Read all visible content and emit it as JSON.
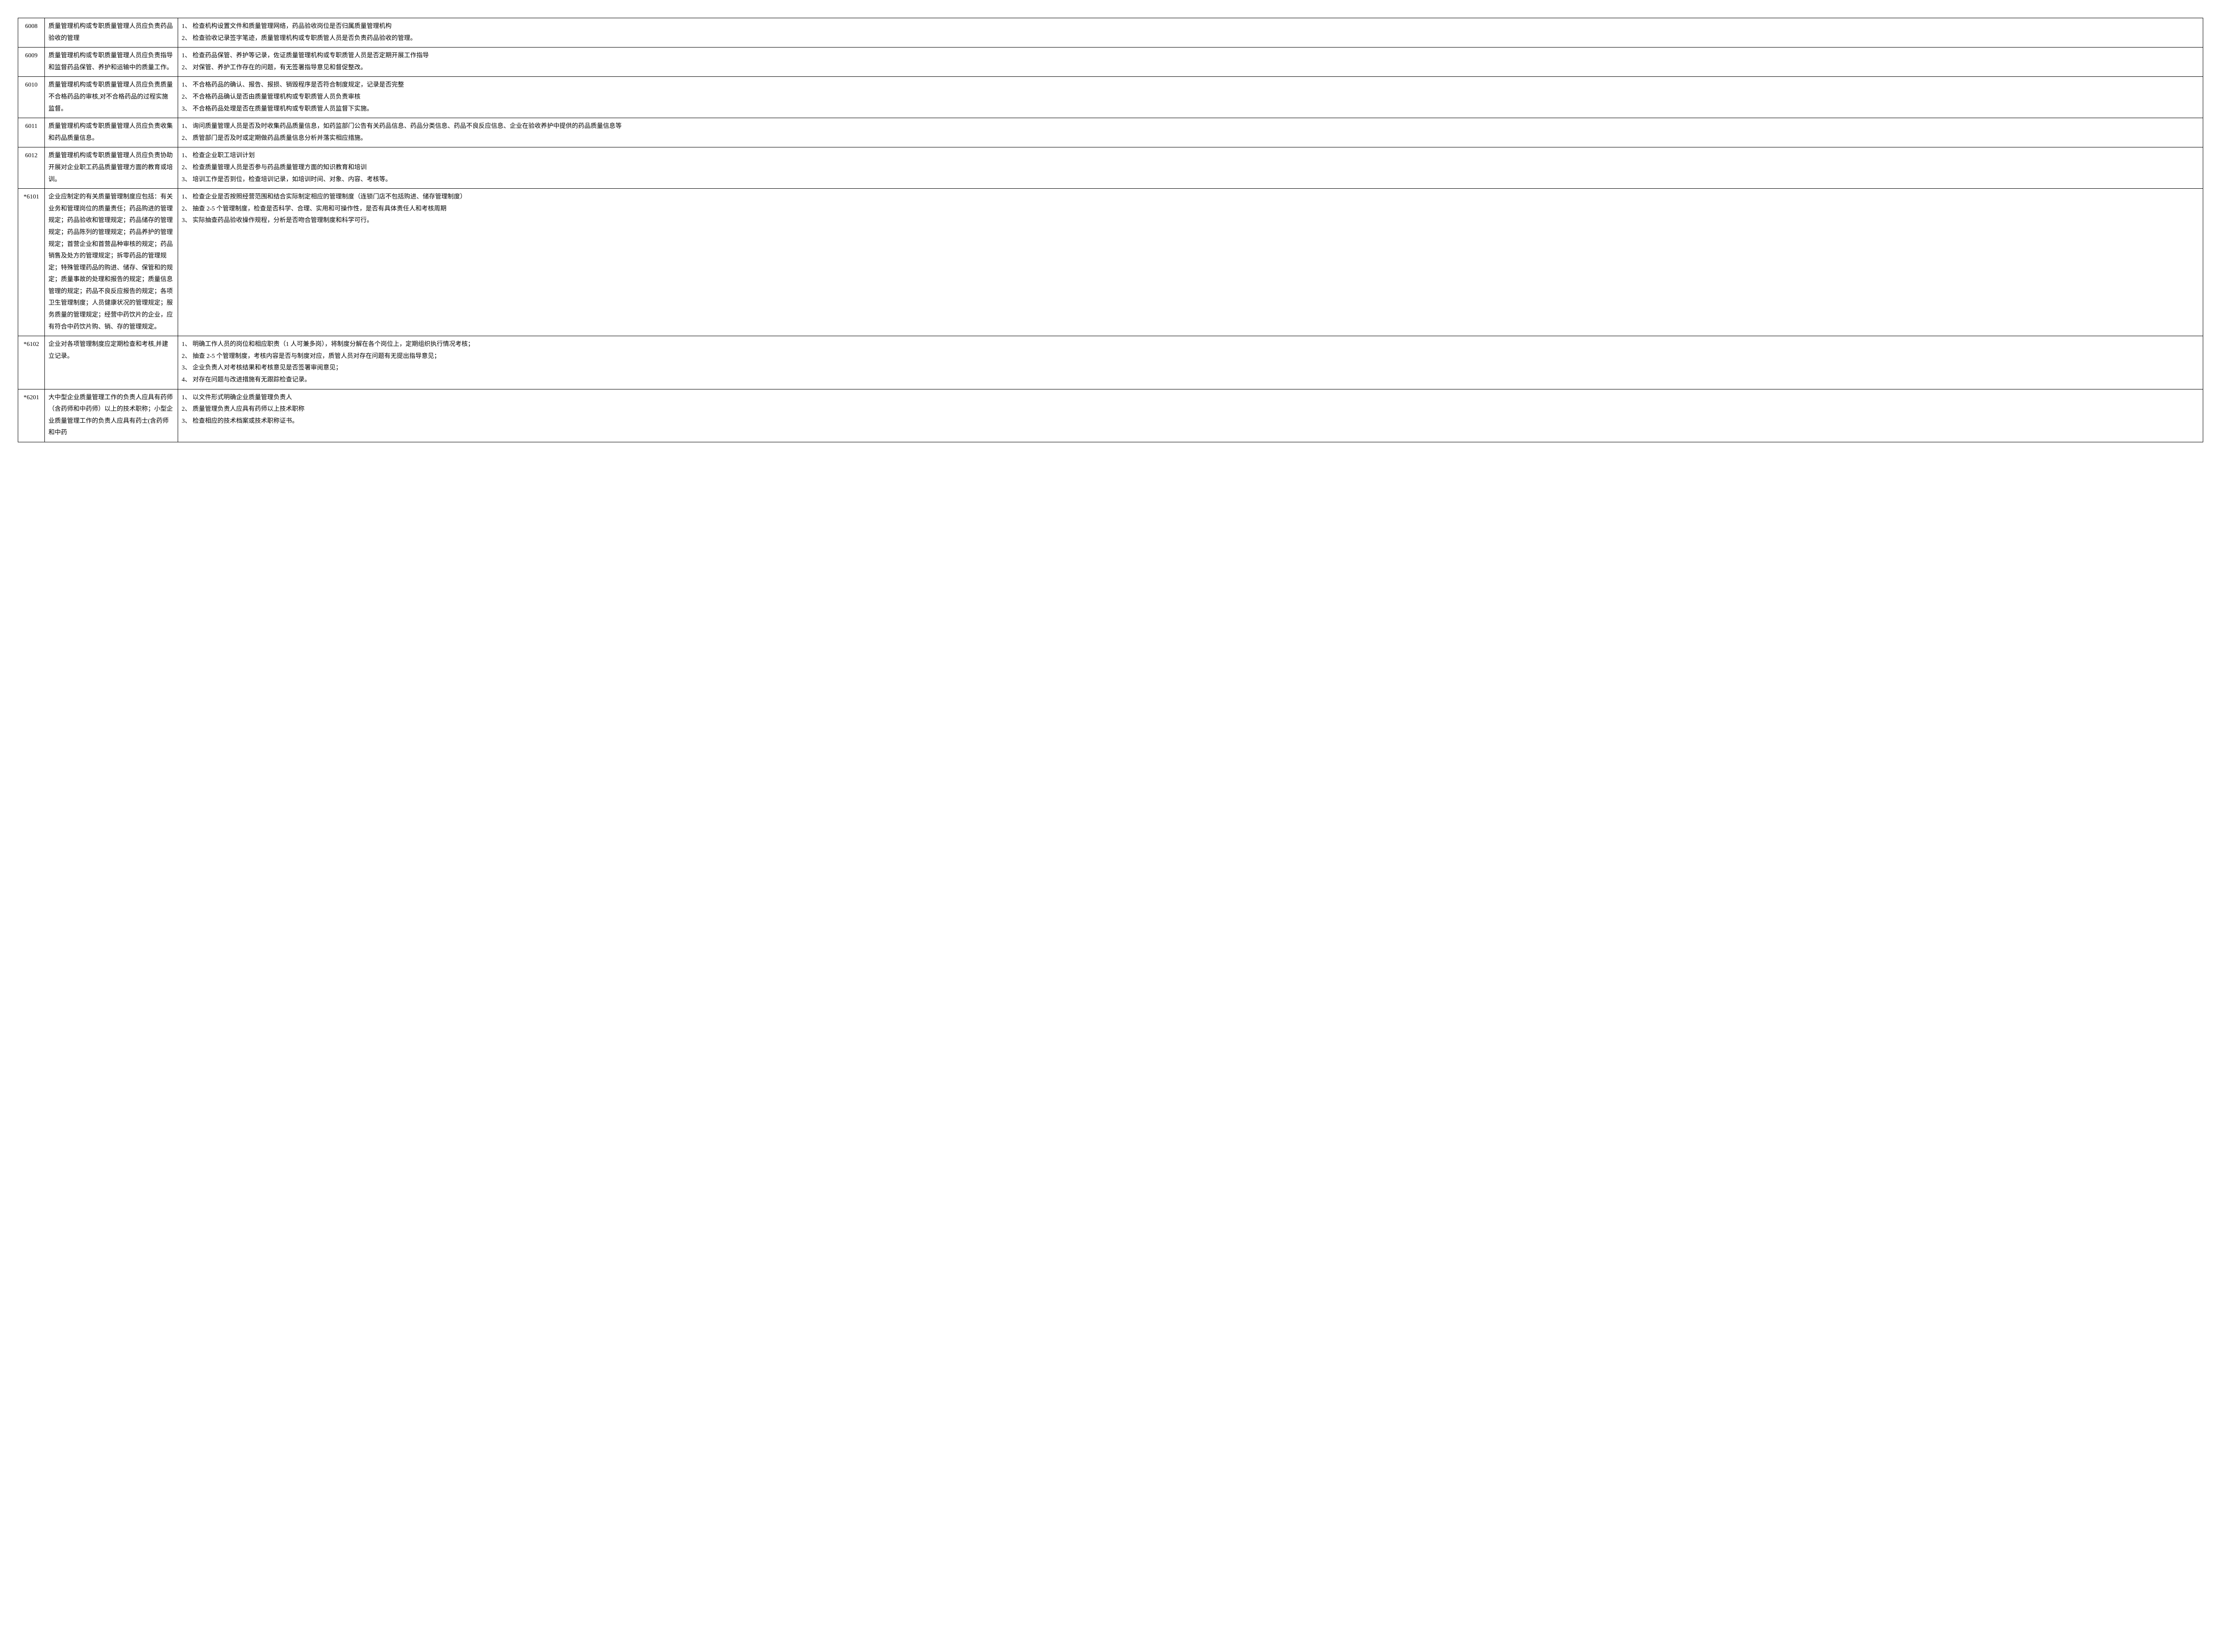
{
  "table": {
    "columns": {
      "id_width": 60,
      "desc_width": 300
    },
    "styling": {
      "border_color": "#000000",
      "text_color": "#000000",
      "background_color": "#ffffff",
      "font_family": "SimSun",
      "font_size": 14,
      "line_height": 1.9
    },
    "rows": [
      {
        "id": "6008",
        "description": "质量管理机构或专职质量管理人员应负责药品验收的管理",
        "checks": "1、 检查机构设置文件和质量管理网络，药品验收岗位是否归属质量管理机构\n2、 检查验收记录签字笔迹，质量管理机构或专职质管人员是否负责药品验收的管理。"
      },
      {
        "id": "6009",
        "description": "质量管理机构或专职质量管理人员应负责指导和监督药品保管、养护和运输中的质量工作。",
        "checks": "1、 检查药品保管、养护等记录，佐证质量管理机构或专职质管人员是否定期开展工作指导\n2、 对保管、养护工作存在的问题，有无签署指导意见和督促整改。"
      },
      {
        "id": "6010",
        "description": "质量管理机构或专职质量管理人员应负责质量不合格药品的审核,对不合格药品的过程实施监督。",
        "checks": "1、 不合格药品的确认、报告、报损、销毁程序是否符合制度规定，记录是否完整\n2、 不合格药品确认是否由质量管理机构或专职质管人员负责审核\n3、 不合格药品处理是否在质量管理机构或专职质管人员监督下实施。"
      },
      {
        "id": "6011",
        "description": "质量管理机构或专职质量管理人员应负责收集和药品质量信息。",
        "checks": "1、 询问质量管理人员是否及时收集药品质量信息，如药监部门公告有关药品信息、药品分类信息、药品不良反应信息、企业在验收养护中提供的药品质量信息等\n2、 质管部门是否及时或定期做药品质量信息分析并落实相应措施。"
      },
      {
        "id": "6012",
        "description": "质量管理机构或专职质量管理人员应负责协助开展对企业职工药品质量管理方面的教育或培训。",
        "checks": "1、 检查企业职工培训计划\n2、 检查质量管理人员是否参与药品质量管理方面的知识教育和培训\n3、 培训工作是否到位，检查培训记录，如培训时间、对象、内容、考核等。"
      },
      {
        "id": "*6101",
        "description": "企业应制定的有关质量管理制度应包括：有关业务和管理岗位的质量责任；药品购进的管理规定；药品验收和管理规定；药品储存的管理规定；药品陈列的管理规定；药品养护的管理规定；首营企业和首营品种审核的规定；药品销售及处方的管理规定；拆零药品的管理规定；特殊管理药品的购进、储存、保管和的规定；质量事故的处理和报告的规定；质量信息管理的规定；药品不良反应报告的规定；各项卫生管理制度；人员健康状况的管理规定；服务质量的管理规定；经营中药饮片的企业，应有符合中药饮片购、销、存的管理规定。",
        "checks": "1、 检查企业是否按照经营范围和结合实际制定相应的管理制度（连锁门店不包括购进、储存管理制度）\n2、 抽查 2-5 个管理制度，检查是否科学、合理、实用和可操作性，是否有具体责任人和考核周期\n3、 实际抽查药品验收操作规程，分析是否吻合管理制度和科学可行。"
      },
      {
        "id": "*6102",
        "description": "企业对各项管理制度应定期检查和考核,并建立记录。",
        "checks": "1、 明确工作人员的岗位和相应职责（1 人可兼多岗），将制度分解在各个岗位上，定期组织执行情况考核；\n2、 抽查 2-5 个管理制度，考核内容是否与制度对应，质管人员对存在问题有无提出指导意见；\n3、 企业负责人对考核结果和考核意见是否签署审阅意见；\n4、 对存在问题与改进措施有无跟踪检查记录。"
      },
      {
        "id": "*6201",
        "description": "大中型企业质量管理工作的负责人应具有药师（含药师和中药师）以上的技术职称；小型企业质量管理工作的负责人应具有药士(含药师和中药",
        "checks": "1、 以文件形式明确企业质量管理负责人\n2、 质量管理负责人应具有药师以上技术职称\n3、 检查相应的技术档案或技术职称证书。"
      }
    ]
  }
}
